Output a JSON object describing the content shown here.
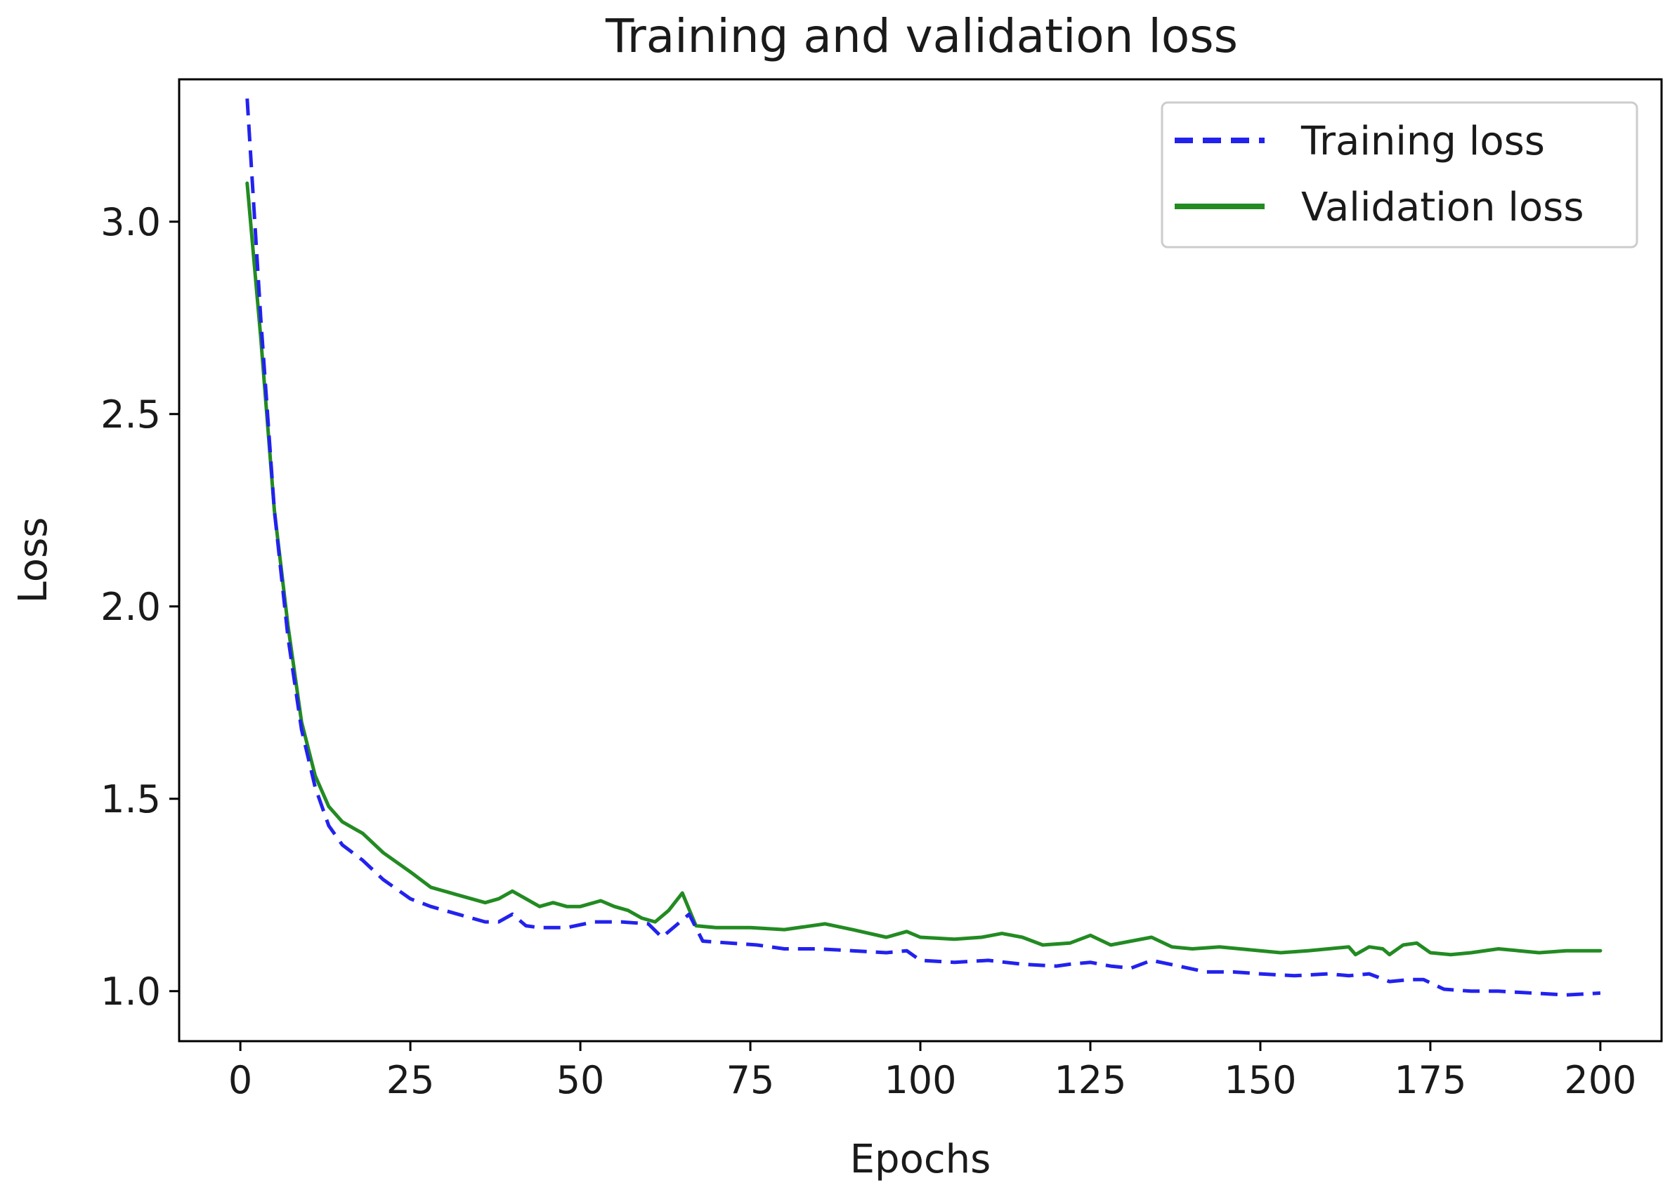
{
  "chart_data": {
    "type": "line",
    "title": "Training and validation loss",
    "xlabel": "Epochs",
    "ylabel": "Loss",
    "xlim": [
      -9,
      209
    ],
    "ylim": [
      0.87,
      3.37
    ],
    "xticks": [
      0,
      25,
      50,
      75,
      100,
      125,
      150,
      175,
      200
    ],
    "yticks": [
      1.0,
      1.5,
      2.0,
      2.5,
      3.0
    ],
    "xtick_labels": [
      "0",
      "25",
      "50",
      "75",
      "100",
      "125",
      "150",
      "175",
      "200"
    ],
    "ytick_labels": [
      "1.0",
      "1.5",
      "2.0",
      "2.5",
      "3.0"
    ],
    "grid": false,
    "legend_position": "top-right",
    "series": [
      {
        "name": "Training loss",
        "color": "#2222ee",
        "style": "dashed",
        "x": [
          1,
          3,
          5,
          7,
          9,
          11,
          13,
          15,
          18,
          21,
          25,
          28,
          32,
          36,
          38,
          40,
          42,
          44,
          48,
          52,
          56,
          60,
          62,
          64,
          66,
          68,
          72,
          76,
          80,
          85,
          90,
          95,
          98,
          100,
          105,
          110,
          115,
          120,
          122,
          125,
          128,
          131,
          134,
          138,
          142,
          146,
          150,
          155,
          160,
          163,
          166,
          169,
          172,
          174,
          177,
          181,
          185,
          190,
          195,
          200
        ],
        "y": [
          3.32,
          2.75,
          2.25,
          1.92,
          1.68,
          1.53,
          1.43,
          1.38,
          1.34,
          1.29,
          1.24,
          1.22,
          1.2,
          1.18,
          1.18,
          1.2,
          1.17,
          1.165,
          1.165,
          1.18,
          1.18,
          1.175,
          1.14,
          1.17,
          1.2,
          1.13,
          1.125,
          1.12,
          1.11,
          1.11,
          1.105,
          1.1,
          1.105,
          1.08,
          1.075,
          1.08,
          1.07,
          1.065,
          1.07,
          1.075,
          1.065,
          1.06,
          1.08,
          1.065,
          1.05,
          1.05,
          1.045,
          1.04,
          1.045,
          1.04,
          1.045,
          1.025,
          1.03,
          1.03,
          1.005,
          1.0,
          1.0,
          0.995,
          0.99,
          0.995
        ]
      },
      {
        "name": "Validation loss",
        "color": "#228B22",
        "style": "solid",
        "x": [
          1,
          3,
          5,
          7,
          9,
          11,
          13,
          15,
          18,
          21,
          25,
          28,
          32,
          36,
          38,
          40,
          42,
          44,
          46,
          48,
          50,
          53,
          55,
          57,
          59,
          61,
          63,
          65,
          67,
          70,
          75,
          80,
          86,
          90,
          95,
          98,
          100,
          105,
          109,
          112,
          115,
          118,
          122,
          125,
          128,
          131,
          134,
          137,
          140,
          144,
          147,
          150,
          153,
          157,
          160,
          163,
          164,
          166,
          168,
          169,
          171,
          173,
          175,
          178,
          181,
          185,
          188,
          191,
          195,
          200
        ],
        "y": [
          3.1,
          2.7,
          2.25,
          1.95,
          1.7,
          1.56,
          1.48,
          1.44,
          1.41,
          1.36,
          1.31,
          1.27,
          1.25,
          1.23,
          1.24,
          1.26,
          1.24,
          1.22,
          1.23,
          1.22,
          1.22,
          1.235,
          1.22,
          1.21,
          1.19,
          1.18,
          1.21,
          1.255,
          1.17,
          1.165,
          1.165,
          1.16,
          1.175,
          1.16,
          1.14,
          1.155,
          1.14,
          1.135,
          1.14,
          1.15,
          1.14,
          1.12,
          1.125,
          1.145,
          1.12,
          1.13,
          1.14,
          1.115,
          1.11,
          1.115,
          1.11,
          1.105,
          1.1,
          1.105,
          1.11,
          1.115,
          1.095,
          1.115,
          1.11,
          1.095,
          1.12,
          1.125,
          1.1,
          1.095,
          1.1,
          1.11,
          1.105,
          1.1,
          1.105,
          1.105
        ]
      }
    ]
  }
}
